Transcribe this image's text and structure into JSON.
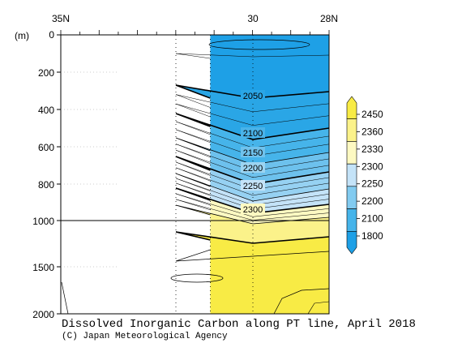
{
  "chart_data": {
    "type": "heatmap",
    "title": "Dissolved Inorganic Carbon along PT line, April 2018",
    "credit": "(C) Japan Meteorological Agency",
    "ylabel": "(m)",
    "x_axis": {
      "tick_labels": [
        "35N",
        "30",
        "28N"
      ],
      "range_deg_lat": [
        35,
        28
      ],
      "direction": "decreasing latitude to the right"
    },
    "y_axis": {
      "tick_labels": [
        "0",
        "200",
        "400",
        "600",
        "800",
        "1000",
        "1500",
        "2000"
      ],
      "upper_range_m": [
        0,
        1000
      ],
      "lower_range_m": [
        1000,
        2000
      ],
      "inverted": true,
      "note": "axis scale compressed below 1000 m"
    },
    "colorbar": {
      "levels": [
        "1800",
        "2100",
        "2200",
        "2250",
        "2300",
        "2330",
        "2360",
        "2450"
      ],
      "colors": [
        "#1ea0e6",
        "#46b4ea",
        "#82cbf0",
        "#c4e3f8",
        "#fdf9c2",
        "#fbf28a",
        "#f8eb45"
      ]
    },
    "contour_labels": [
      "2050",
      "2100",
      "2150",
      "2200",
      "2250",
      "2300"
    ],
    "data_extent_lat": [
      31.1,
      28.0
    ]
  }
}
